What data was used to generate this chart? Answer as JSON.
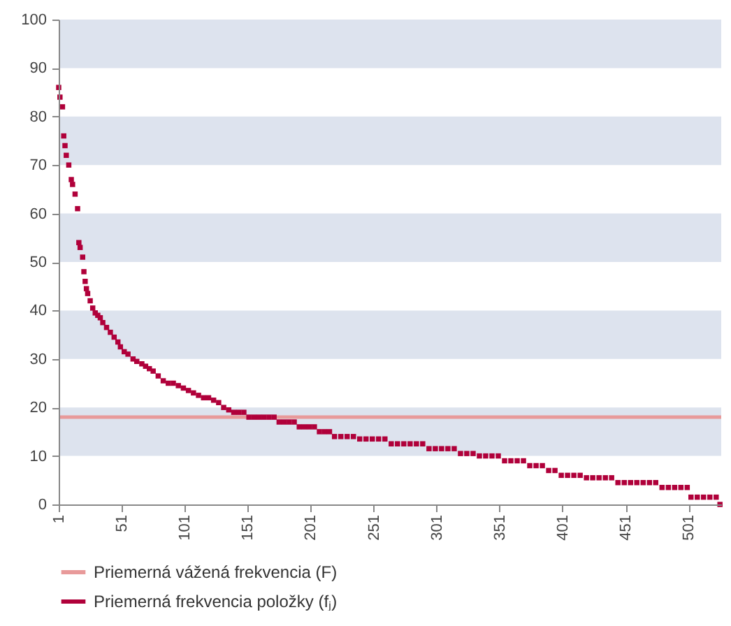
{
  "chart_data": {
    "type": "scatter",
    "marker": "square",
    "legend": "bottom",
    "xlim": [
      1,
      527
    ],
    "xticks": [
      1,
      51,
      101,
      151,
      201,
      251,
      301,
      351,
      401,
      451,
      501
    ],
    "ylim": [
      0,
      100
    ],
    "yticks": [
      0,
      10,
      20,
      30,
      40,
      50,
      60,
      70,
      80,
      90,
      100
    ],
    "grid": false,
    "bands": [
      {
        "axis": "y",
        "from": 10,
        "to": 20,
        "color": "#dde3ee"
      },
      {
        "axis": "y",
        "from": 30,
        "to": 40,
        "color": "#dde3ee"
      },
      {
        "axis": "y",
        "from": 50,
        "to": 60,
        "color": "#dde3ee"
      },
      {
        "axis": "y",
        "from": 70,
        "to": 80,
        "color": "#dde3ee"
      },
      {
        "axis": "y",
        "from": 90,
        "to": 100,
        "color": "#dde3ee"
      }
    ],
    "ref_lines": [
      {
        "axis": "y",
        "value": 18,
        "label": "Priemerná vážená frekvencia (F)",
        "color": "#e89a9a"
      }
    ],
    "series": [
      {
        "name": "Priemerná frekvencia položky (fⱼ)",
        "color": "#b0003a",
        "x": [
          1,
          2,
          4,
          5,
          6,
          7,
          9,
          11,
          12,
          14,
          16,
          17,
          18,
          20,
          21,
          22,
          23,
          24,
          26,
          28,
          30,
          32,
          34,
          36,
          39,
          42,
          45,
          48,
          50,
          53,
          56,
          60,
          63,
          67,
          70,
          73,
          76,
          80,
          84,
          88,
          92,
          96,
          100,
          104,
          108,
          112,
          116,
          120,
          124,
          128,
          132,
          136,
          140,
          144,
          148,
          152,
          156,
          160,
          164,
          168,
          172,
          176,
          180,
          184,
          188,
          192,
          196,
          200,
          204,
          208,
          212,
          216,
          220,
          225,
          230,
          235,
          240,
          245,
          250,
          255,
          260,
          265,
          270,
          275,
          280,
          285,
          290,
          295,
          300,
          305,
          310,
          315,
          320,
          325,
          330,
          335,
          340,
          345,
          350,
          355,
          360,
          365,
          370,
          375,
          380,
          385,
          390,
          395,
          400,
          405,
          410,
          415,
          420,
          425,
          430,
          435,
          440,
          445,
          450,
          455,
          460,
          465,
          470,
          475,
          480,
          485,
          490,
          495,
          500,
          503,
          508,
          513,
          518,
          523,
          526
        ],
        "values": [
          86,
          84,
          82,
          76,
          74,
          72,
          70,
          67,
          66,
          64,
          61,
          54,
          53,
          51,
          48,
          46,
          44.5,
          43.5,
          42,
          40.5,
          39.5,
          39,
          38.5,
          37.5,
          36.5,
          35.5,
          34.5,
          33.5,
          32.5,
          31.5,
          31,
          30,
          29.5,
          29,
          28.5,
          28,
          27.5,
          26.5,
          25.5,
          25,
          25,
          24.5,
          24,
          23.5,
          23,
          22.5,
          22,
          22,
          21.5,
          21,
          20,
          19.5,
          19,
          19,
          19,
          18,
          18,
          18,
          18,
          18,
          18,
          17,
          17,
          17,
          17,
          16,
          16,
          16,
          16,
          15,
          15,
          15,
          14,
          14,
          14,
          14,
          13.5,
          13.5,
          13.5,
          13.5,
          13.5,
          12.5,
          12.5,
          12.5,
          12.5,
          12.5,
          12.5,
          11.5,
          11.5,
          11.5,
          11.5,
          11.5,
          10.5,
          10.5,
          10.5,
          10,
          10,
          10,
          10,
          9,
          9,
          9,
          9,
          8,
          8,
          8,
          7,
          7,
          6,
          6,
          6,
          6,
          5.5,
          5.5,
          5.5,
          5.5,
          5.5,
          4.5,
          4.5,
          4.5,
          4.5,
          4.5,
          4.5,
          4.5,
          3.5,
          3.5,
          3.5,
          3.5,
          3.5,
          1.5,
          1.5,
          1.5,
          1.5,
          1.5,
          0
        ]
      }
    ]
  }
}
